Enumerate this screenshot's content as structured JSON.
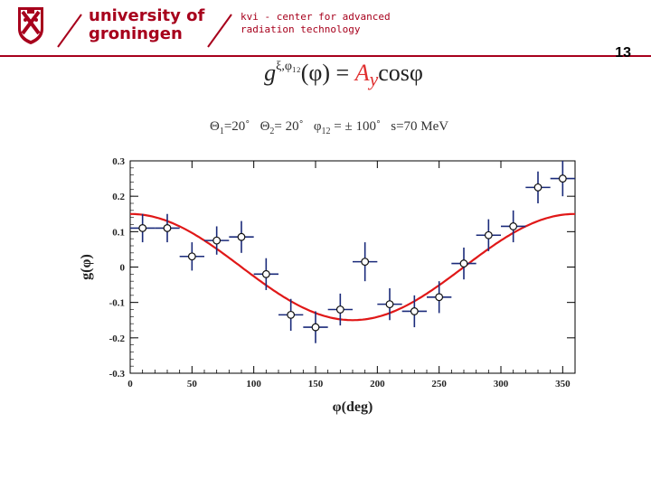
{
  "header": {
    "university_line1": "university of",
    "university_line2": "groningen",
    "institute_line1": "kvi - center for advanced",
    "institute_line2": "radiation technology",
    "brand_color": "#a7001c"
  },
  "slide_number": "13",
  "formula": {
    "lhs": "g",
    "superscript": "ξ,φ₁₂",
    "arg": "(φ) = ",
    "asym": "A",
    "asym_sub": "y",
    "rhs": "cosφ"
  },
  "params": {
    "theta1_sym": "Θ",
    "theta1_sub": "1",
    "theta1_val": "=20˚",
    "theta2_sym": "Θ",
    "theta2_sub": "2",
    "theta2_val": "= 20˚",
    "phi12_sym": "φ",
    "phi12_sub": "12",
    "phi12_val": " = ± 100˚",
    "energy": "s=70 MeV"
  },
  "chart_data": {
    "type": "scatter",
    "xlabel": "φ(deg)",
    "ylabel": "g(φ)",
    "xlim": [
      0,
      360
    ],
    "ylim": [
      -0.3,
      0.3
    ],
    "xticks": [
      0,
      50,
      100,
      150,
      200,
      250,
      300,
      350
    ],
    "xtick_labels": [
      "0",
      "50",
      "100",
      "150",
      "200",
      "250",
      "300",
      "350"
    ],
    "yticks": [
      -0.3,
      -0.2,
      -0.1,
      0,
      0.1,
      0.2,
      0.3
    ],
    "ytick_labels": [
      "-0.3",
      "-0.2",
      "-0.1",
      "0",
      "0.1",
      "0.2",
      "0.3"
    ],
    "grid": false,
    "series": [
      {
        "kind": "points-with-errors",
        "color": "#1a2a7a",
        "x": [
          10,
          30,
          50,
          70,
          90,
          110,
          130,
          150,
          170,
          190,
          210,
          230,
          250,
          270,
          290,
          310,
          330,
          350
        ],
        "y": [
          0.11,
          0.11,
          0.03,
          0.075,
          0.085,
          -0.02,
          -0.135,
          -0.17,
          -0.12,
          0.015,
          -0.105,
          -0.125,
          -0.085,
          0.01,
          0.09,
          0.115,
          0.225,
          0.25
        ],
        "xerr": [
          10,
          10,
          10,
          10,
          10,
          10,
          10,
          10,
          10,
          10,
          10,
          10,
          10,
          10,
          10,
          10,
          10,
          10
        ],
        "yerr": [
          0.04,
          0.04,
          0.04,
          0.04,
          0.045,
          0.045,
          0.045,
          0.045,
          0.045,
          0.055,
          0.045,
          0.045,
          0.045,
          0.045,
          0.045,
          0.045,
          0.045,
          0.05
        ]
      },
      {
        "kind": "curve",
        "color": "#e01818",
        "function": "amplitude*cos(phi - phase)",
        "amplitude": 0.15,
        "phase": 0,
        "x_range": [
          0,
          360
        ]
      }
    ]
  }
}
